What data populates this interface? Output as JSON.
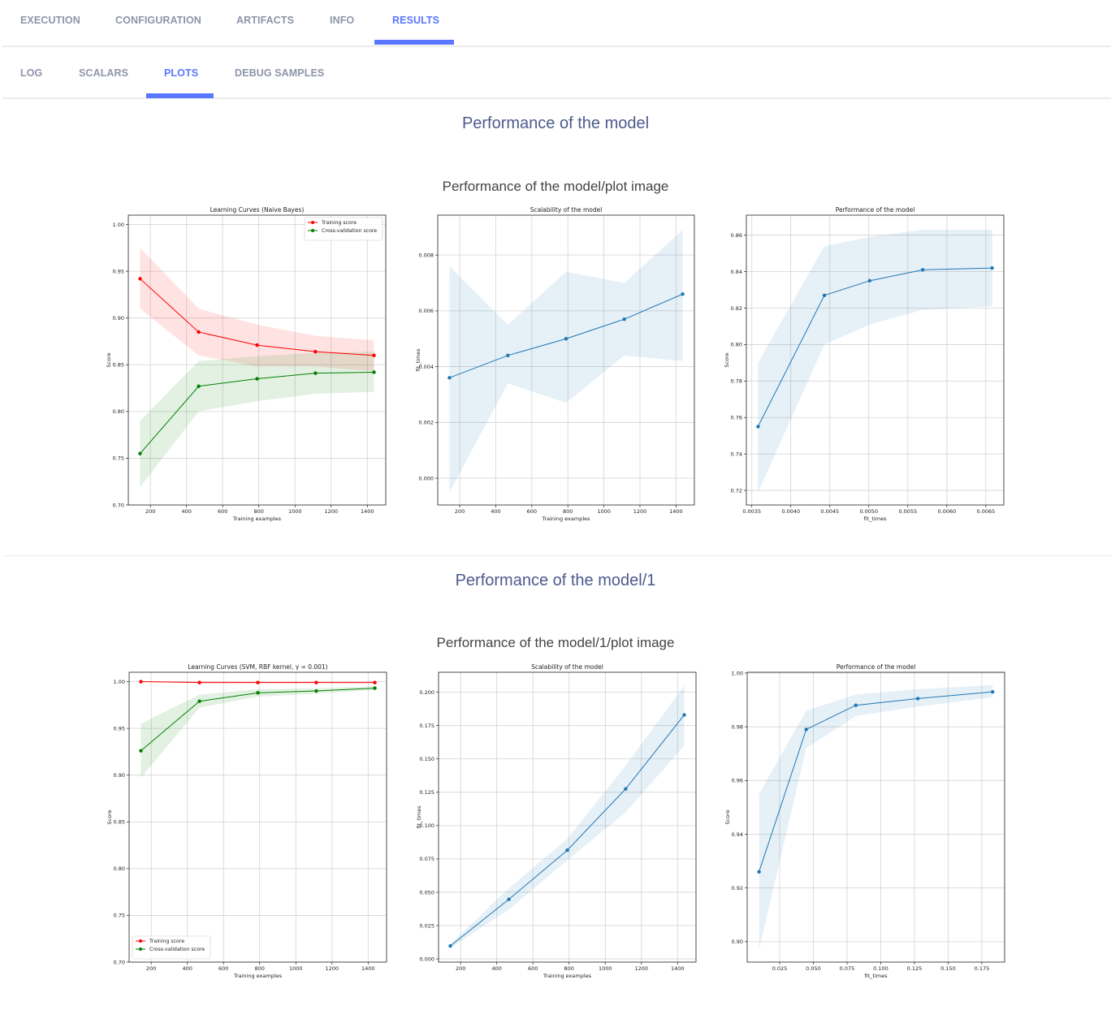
{
  "tabs": [
    {
      "label": "EXECUTION",
      "active": false
    },
    {
      "label": "CONFIGURATION",
      "active": false
    },
    {
      "label": "ARTIFACTS",
      "active": false
    },
    {
      "label": "INFO",
      "active": false
    },
    {
      "label": "RESULTS",
      "active": true
    }
  ],
  "subtabs": [
    {
      "label": "LOG",
      "active": false
    },
    {
      "label": "SCALARS",
      "active": false
    },
    {
      "label": "PLOTS",
      "active": true
    },
    {
      "label": "DEBUG SAMPLES",
      "active": false
    }
  ],
  "accent_color": "#5a77ff",
  "sections": [
    {
      "title": "Performance of the model",
      "subtitle": "Performance of the model/plot image"
    },
    {
      "title": "Performance of the model/1",
      "subtitle": "Performance of the model/1/plot image"
    }
  ],
  "chart_data": [
    {
      "type": "line",
      "title": "Learning Curves (Naive Bayes)",
      "xlabel": "Training examples",
      "ylabel": "Score",
      "xlim": [
        78,
        1502
      ],
      "ylim": [
        0.7,
        1.01
      ],
      "xticks": [
        "200",
        "400",
        "600",
        "800",
        "1000",
        "1200",
        "1400"
      ],
      "yticks": [
        "0.70",
        "0.75",
        "0.80",
        "0.85",
        "0.90",
        "0.95",
        "1.00"
      ],
      "grid": true,
      "legend": "upper-right",
      "x": [
        143,
        467,
        790,
        1113,
        1437
      ],
      "series": [
        {
          "name": "Training score",
          "color": "#ff0000",
          "values": [
            0.942,
            0.885,
            0.871,
            0.864,
            0.86
          ],
          "upper": [
            0.975,
            0.91,
            0.893,
            0.881,
            0.876
          ],
          "lower": [
            0.91,
            0.86,
            0.848,
            0.848,
            0.843
          ]
        },
        {
          "name": "Cross-validation score",
          "color": "#008000",
          "values": [
            0.755,
            0.827,
            0.835,
            0.841,
            0.842
          ],
          "upper": [
            0.79,
            0.854,
            0.859,
            0.863,
            0.864
          ],
          "lower": [
            0.719,
            0.8,
            0.811,
            0.819,
            0.821
          ]
        }
      ]
    },
    {
      "type": "line",
      "title": "Scalability of the model",
      "xlabel": "Training examples",
      "ylabel": "fit_times",
      "xlim": [
        78,
        1502
      ],
      "ylim": [
        -0.00096,
        0.00943
      ],
      "xticks": [
        "200",
        "400",
        "600",
        "800",
        "1000",
        "1200",
        "1400"
      ],
      "yticks": [
        "0.000",
        "0.002",
        "0.004",
        "0.006",
        "0.008"
      ],
      "grid": true,
      "x": [
        143,
        467,
        790,
        1113,
        1437
      ],
      "series": [
        {
          "color": "#1f77b4",
          "values": [
            0.0036,
            0.0044,
            0.005,
            0.0057,
            0.0066
          ],
          "upper": [
            0.0076,
            0.0055,
            0.0074,
            0.007,
            0.0089
          ],
          "lower": [
            -0.0005,
            0.0034,
            0.0027,
            0.0044,
            0.0042
          ]
        }
      ]
    },
    {
      "type": "line",
      "title": "Performance of the model",
      "xlabel": "fit_times",
      "ylabel": "Score",
      "xlim": [
        0.00343,
        0.00673
      ],
      "ylim": [
        0.712,
        0.871
      ],
      "xticks": [
        "0.0035",
        "0.0040",
        "0.0045",
        "0.0050",
        "0.0055",
        "0.0060",
        "0.0065"
      ],
      "yticks": [
        "0.72",
        "0.74",
        "0.76",
        "0.78",
        "0.80",
        "0.82",
        "0.84",
        "0.86"
      ],
      "grid": true,
      "x": [
        0.00358,
        0.00443,
        0.00501,
        0.00569,
        0.00658
      ],
      "series": [
        {
          "color": "#1f77b4",
          "values": [
            0.755,
            0.827,
            0.835,
            0.841,
            0.842
          ],
          "upper": [
            0.79,
            0.854,
            0.859,
            0.863,
            0.863
          ],
          "lower": [
            0.719,
            0.8,
            0.811,
            0.819,
            0.821
          ]
        }
      ]
    },
    {
      "type": "line",
      "title": "Learning Curves (SVM, RBF kernel, γ = 0.001)",
      "xlabel": "Training examples",
      "ylabel": "Score",
      "xlim": [
        78,
        1502
      ],
      "ylim": [
        0.7,
        1.01
      ],
      "xticks": [
        "200",
        "400",
        "600",
        "800",
        "1000",
        "1200",
        "1400"
      ],
      "yticks": [
        "0.70",
        "0.75",
        "0.80",
        "0.85",
        "0.90",
        "0.95",
        "1.00"
      ],
      "grid": true,
      "legend": "lower-left",
      "x": [
        143,
        467,
        790,
        1113,
        1437
      ],
      "series": [
        {
          "name": "Training score",
          "color": "#ff0000",
          "values": [
            1.0,
            0.999,
            0.999,
            0.999,
            0.999
          ],
          "upper": [
            1.0,
            1.0,
            0.9995,
            0.9995,
            0.9995
          ],
          "lower": [
            1.0,
            0.998,
            0.998,
            0.998,
            0.998
          ]
        },
        {
          "name": "Cross-validation score",
          "color": "#008000",
          "values": [
            0.926,
            0.979,
            0.988,
            0.99,
            0.993
          ],
          "upper": [
            0.955,
            0.986,
            0.992,
            0.993,
            0.995
          ],
          "lower": [
            0.897,
            0.972,
            0.984,
            0.987,
            0.991
          ]
        }
      ]
    },
    {
      "type": "line",
      "title": "Scalability of the model",
      "xlabel": "Training examples",
      "ylabel": "fit_times",
      "xlim": [
        78,
        1502
      ],
      "ylim": [
        -0.0024,
        0.215
      ],
      "xticks": [
        "200",
        "400",
        "600",
        "800",
        "1000",
        "1200",
        "1400"
      ],
      "yticks": [
        "0.000",
        "0.025",
        "0.050",
        "0.075",
        "0.100",
        "0.125",
        "0.150",
        "0.175",
        "0.200"
      ],
      "grid": true,
      "x": [
        143,
        467,
        790,
        1113,
        1437
      ],
      "series": [
        {
          "color": "#1f77b4",
          "values": [
            0.0097,
            0.0447,
            0.0815,
            0.1275,
            0.183
          ],
          "upper": [
            0.011,
            0.053,
            0.09,
            0.145,
            0.205
          ],
          "lower": [
            0.008,
            0.037,
            0.074,
            0.11,
            0.16
          ]
        }
      ]
    },
    {
      "type": "line",
      "title": "Performance of the model",
      "xlabel": "fit_times",
      "ylabel": "Score",
      "xlim": [
        0.0009,
        0.1919
      ],
      "ylim": [
        0.8924,
        1.0003
      ],
      "xticks": [
        "0.025",
        "0.050",
        "0.075",
        "0.100",
        "0.125",
        "0.150",
        "0.175"
      ],
      "yticks": [
        "0.90",
        "0.92",
        "0.94",
        "0.96",
        "0.98",
        "1.00"
      ],
      "grid": true,
      "x": [
        0.0097,
        0.0447,
        0.0815,
        0.1275,
        0.183
      ],
      "series": [
        {
          "color": "#1f77b4",
          "values": [
            0.926,
            0.979,
            0.988,
            0.9905,
            0.993
          ],
          "upper": [
            0.955,
            0.986,
            0.992,
            0.994,
            0.9955
          ],
          "lower": [
            0.897,
            0.972,
            0.984,
            0.9875,
            0.991
          ]
        }
      ]
    }
  ]
}
